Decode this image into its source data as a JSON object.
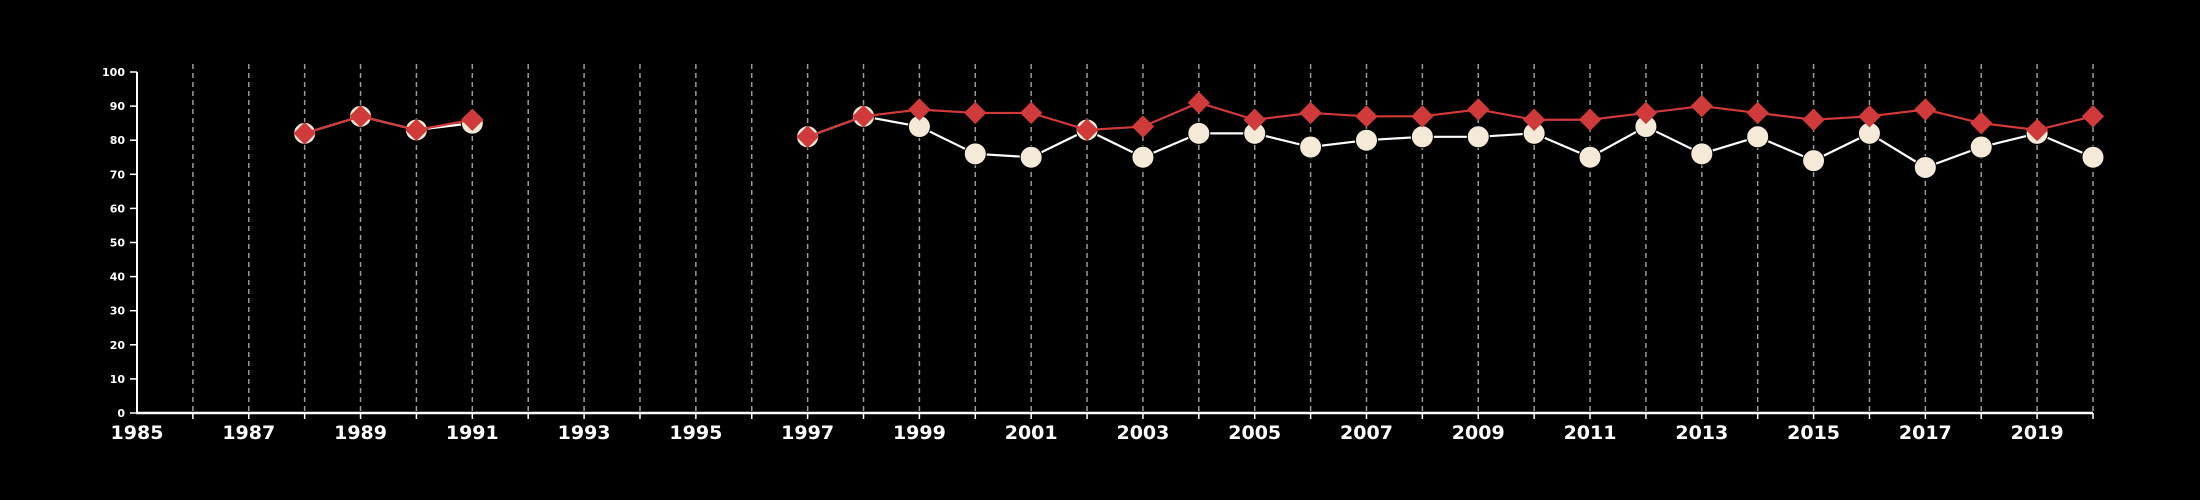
{
  "chart_data": {
    "type": "line",
    "title": "",
    "xlabel": "",
    "ylabel": "",
    "xlim": [
      1985,
      2020
    ],
    "ylim": [
      0,
      100
    ],
    "x_ticks": [
      1985,
      1987,
      1989,
      1991,
      1993,
      1995,
      1997,
      1999,
      2001,
      2003,
      2005,
      2007,
      2009,
      2011,
      2013,
      2015,
      2017,
      2019
    ],
    "y_ticks": [
      0,
      10,
      20,
      30,
      40,
      50,
      60,
      70,
      80,
      90,
      100
    ],
    "grid": "vertical dashed lines at each year",
    "legend": "none",
    "colors": {
      "background": "#000000",
      "axis": "#ffffff",
      "grid": "#9a9a9a"
    },
    "series": [
      {
        "marker": "circle",
        "color": "#f5ead8",
        "line_color": "#ffffff",
        "points": [
          [
            1988,
            82
          ],
          [
            1989,
            87
          ],
          [
            1990,
            83
          ],
          [
            1991,
            85
          ],
          [
            1997,
            81
          ],
          [
            1998,
            87
          ],
          [
            1999,
            84
          ],
          [
            2000,
            76
          ],
          [
            2001,
            75
          ],
          [
            2002,
            83
          ],
          [
            2003,
            75
          ],
          [
            2004,
            82
          ],
          [
            2005,
            82
          ],
          [
            2006,
            78
          ],
          [
            2007,
            80
          ],
          [
            2008,
            81
          ],
          [
            2009,
            81
          ],
          [
            2010,
            82
          ],
          [
            2011,
            75
          ],
          [
            2012,
            84
          ],
          [
            2013,
            76
          ],
          [
            2014,
            81
          ],
          [
            2015,
            74
          ],
          [
            2016,
            82
          ],
          [
            2017,
            72
          ],
          [
            2018,
            78
          ],
          [
            2019,
            82
          ],
          [
            2020,
            75
          ]
        ]
      },
      {
        "marker": "diamond",
        "color": "#d03a3a",
        "line_color": "#d03a3a",
        "points": [
          [
            1988,
            82
          ],
          [
            1989,
            87
          ],
          [
            1990,
            83
          ],
          [
            1991,
            86
          ],
          [
            1997,
            81
          ],
          [
            1998,
            87
          ],
          [
            1999,
            89
          ],
          [
            2000,
            88
          ],
          [
            2001,
            88
          ],
          [
            2002,
            83
          ],
          [
            2003,
            84
          ],
          [
            2004,
            91
          ],
          [
            2005,
            86
          ],
          [
            2006,
            88
          ],
          [
            2007,
            87
          ],
          [
            2008,
            87
          ],
          [
            2009,
            89
          ],
          [
            2010,
            86
          ],
          [
            2011,
            86
          ],
          [
            2012,
            88
          ],
          [
            2013,
            90
          ],
          [
            2014,
            88
          ],
          [
            2015,
            86
          ],
          [
            2016,
            87
          ],
          [
            2017,
            89
          ],
          [
            2018,
            85
          ],
          [
            2019,
            83
          ],
          [
            2020,
            87
          ]
        ]
      }
    ]
  }
}
